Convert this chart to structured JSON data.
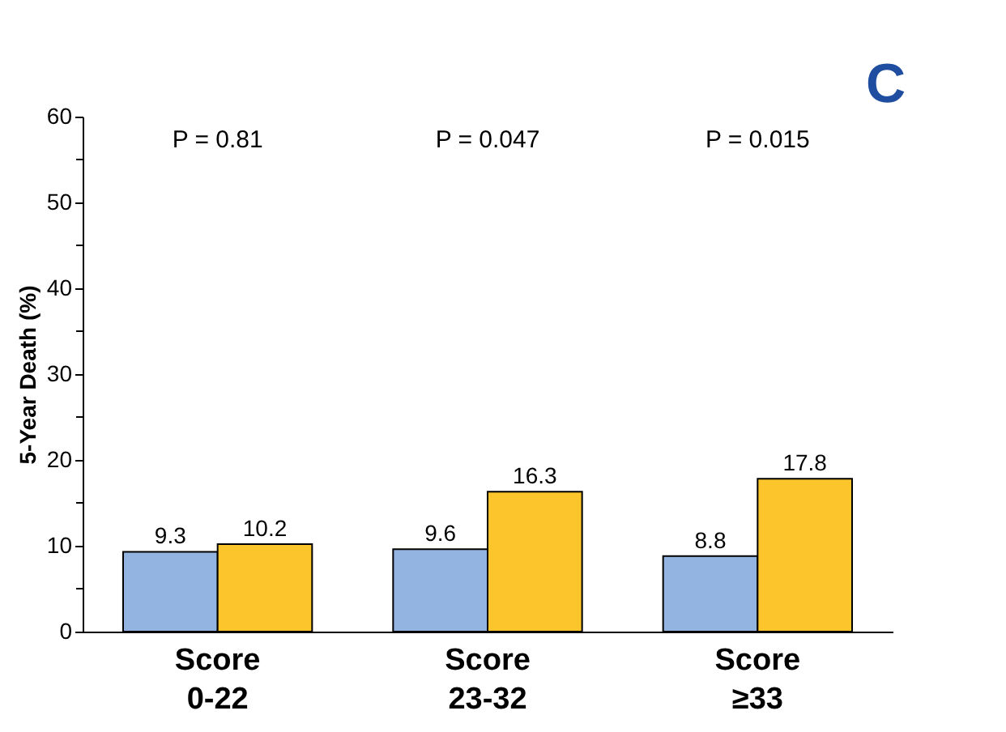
{
  "chart_data": {
    "type": "bar",
    "ylabel": "5-Year Death (%)",
    "categories": [
      "Score\n0-22",
      "Score\n23-32",
      "Score\n≥33"
    ],
    "series": [
      {
        "color": "#93b3e0",
        "values": [
          9.3,
          9.6,
          8.8
        ]
      },
      {
        "color": "#fbc52b",
        "values": [
          10.2,
          16.3,
          17.8
        ]
      }
    ],
    "ylim": [
      0,
      60
    ],
    "yticks": [
      0,
      {
        "value": 5,
        "label": null
      },
      10,
      {
        "value": 15,
        "label": null
      },
      20,
      {
        "value": 25,
        "label": null
      },
      30,
      {
        "value": 35,
        "label": null
      },
      40,
      {
        "value": 45,
        "label": null
      },
      50,
      {
        "value": 55,
        "label": null
      },
      60
    ],
    "data_labels": true,
    "grid": false,
    "legend": false,
    "annotations": [
      "P = 0.81",
      "P = 0.047",
      "P = 0.015",
      "C"
    ]
  }
}
